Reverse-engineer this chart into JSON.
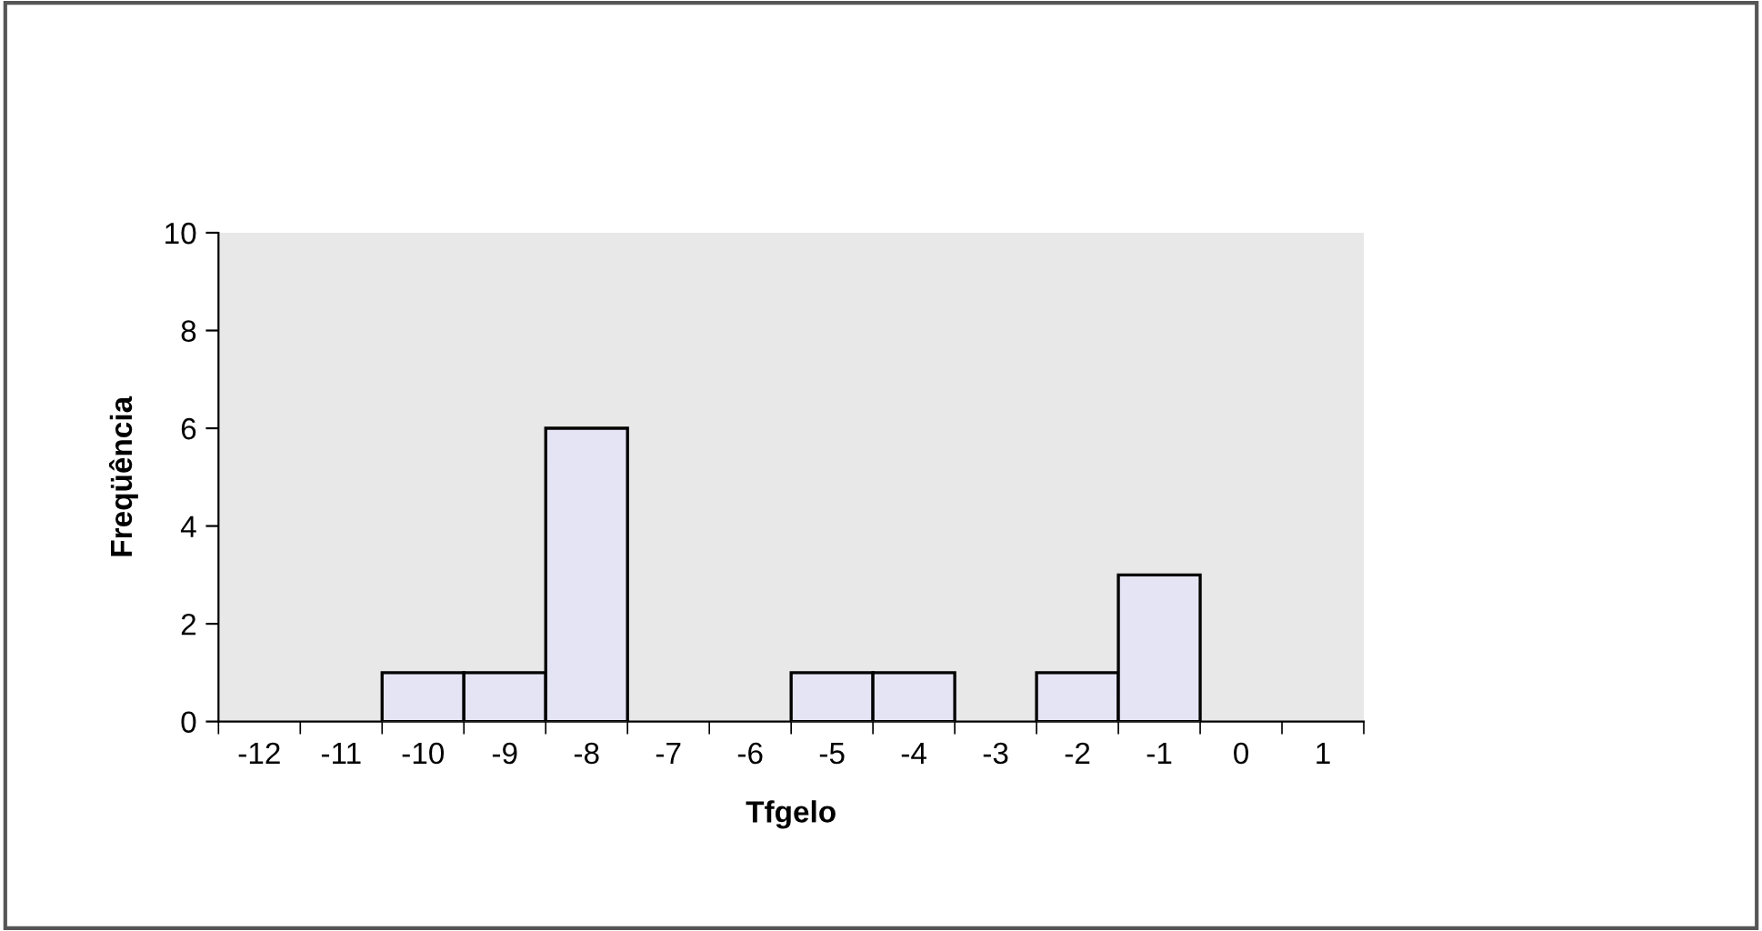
{
  "chart_data": {
    "type": "bar",
    "xlabel": "Tfgelo",
    "ylabel": "Freqüência",
    "categories": [
      "-12",
      "-11",
      "-10",
      "-9",
      "-8",
      "-7",
      "-6",
      "-5",
      "-4",
      "-3",
      "-2",
      "-1",
      "0",
      "1"
    ],
    "values": [
      0,
      0,
      1,
      1,
      6,
      0,
      0,
      1,
      1,
      0,
      1,
      3,
      0,
      0
    ],
    "color": "#e4e4f4",
    "ylim": [
      0,
      10
    ],
    "yticks": [
      0,
      2,
      4,
      6,
      8,
      10
    ],
    "grid": false,
    "legend": false
  }
}
